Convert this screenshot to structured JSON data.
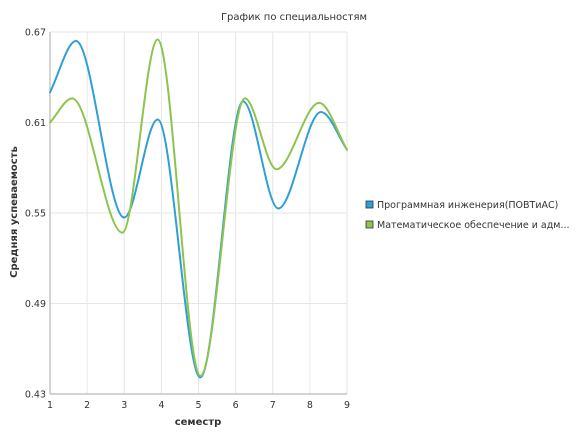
{
  "chart_data": {
    "type": "line",
    "title": "График по специальностям",
    "xlabel": "семестр",
    "ylabel": "Средняя успеваемость",
    "x": [
      1,
      2,
      3,
      4,
      5,
      6,
      7,
      8,
      9
    ],
    "x_ticks": [
      "1",
      "2",
      "3",
      "4",
      "5",
      "6",
      "7",
      "8",
      "9"
    ],
    "y_ticks": [
      "0.43",
      "0.49",
      "0.55",
      "0.61",
      "0.67"
    ],
    "xlim": [
      1,
      9
    ],
    "ylim": [
      0.43,
      0.67
    ],
    "grid": true,
    "smooth": true,
    "legend_position": "right",
    "series": [
      {
        "name": "Программная инженерия(ПОВТиАС)",
        "color": "#2f9fd4",
        "points": [
          [
            1,
            0.63
          ],
          [
            1.7,
            0.664
          ],
          [
            3,
            0.547
          ],
          [
            3.9,
            0.612
          ],
          [
            5.05,
            0.441
          ],
          [
            6.2,
            0.624
          ],
          [
            7.15,
            0.553
          ],
          [
            8.3,
            0.617
          ],
          [
            9,
            0.592
          ]
        ]
      },
      {
        "name": "Математическое обеспечение и адм...",
        "color": "#8dc44e",
        "points": [
          [
            1,
            0.61
          ],
          [
            1.6,
            0.626
          ],
          [
            2.95,
            0.537
          ],
          [
            3.9,
            0.665
          ],
          [
            5.05,
            0.442
          ],
          [
            6.25,
            0.626
          ],
          [
            7.1,
            0.579
          ],
          [
            8.25,
            0.623
          ],
          [
            9,
            0.592
          ]
        ]
      }
    ]
  }
}
